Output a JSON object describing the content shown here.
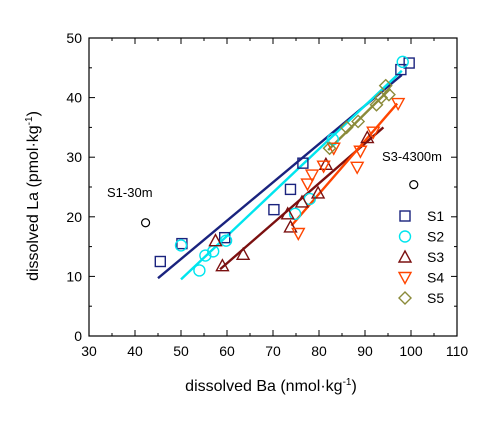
{
  "chart_data": {
    "type": "scatter",
    "xlabel": "dissolved Ba (nmol·kg",
    "xlabel_sup": "-1",
    "xlabel_end": ")",
    "ylabel": "dissolved La (pmol·kg",
    "ylabel_sup": "-1",
    "ylabel_end": ")",
    "xlim": [
      30,
      110
    ],
    "ylim": [
      0,
      50
    ],
    "x_ticks": [
      30,
      40,
      50,
      60,
      70,
      80,
      90,
      100,
      110
    ],
    "y_ticks": [
      0,
      10,
      20,
      30,
      40,
      50
    ],
    "grid": false,
    "legend_position": "right",
    "series": [
      {
        "name": "S1",
        "marker": "square",
        "color": "#1a237e",
        "points": [
          [
            45.5,
            12.5
          ],
          [
            50.2,
            15.5
          ],
          [
            59.5,
            16.5
          ],
          [
            70.2,
            21.2
          ],
          [
            73.8,
            24.6
          ],
          [
            76.5,
            29.0
          ],
          [
            97.8,
            44.7
          ],
          [
            99.6,
            45.8
          ]
        ],
        "fit": [
          [
            45,
            9.7
          ],
          [
            98,
            43.8
          ]
        ]
      },
      {
        "name": "S2",
        "marker": "circle",
        "color": "#00e5ee",
        "points": [
          [
            50.0,
            15.2
          ],
          [
            54.0,
            11.0
          ],
          [
            55.3,
            13.5
          ],
          [
            57.0,
            14.2
          ],
          [
            59.8,
            16.0
          ],
          [
            74.8,
            20.5
          ],
          [
            78.0,
            23.0
          ],
          [
            83.0,
            33.0
          ],
          [
            98.2,
            46.0
          ]
        ],
        "fit": [
          [
            50,
            9.5
          ],
          [
            98,
            44.5
          ]
        ]
      },
      {
        "name": "S3",
        "marker": "triangle",
        "color": "#7b1010",
        "points": [
          [
            57.5,
            16.0
          ],
          [
            59.0,
            11.8
          ],
          [
            63.5,
            13.7
          ],
          [
            73.2,
            20.5
          ],
          [
            73.8,
            18.3
          ],
          [
            76.3,
            22.5
          ],
          [
            79.8,
            24.0
          ],
          [
            81.5,
            28.8
          ],
          [
            90.5,
            33.3
          ]
        ],
        "fit": [
          [
            58.5,
            11.2
          ],
          [
            94,
            35.0
          ]
        ]
      },
      {
        "name": "S4",
        "marker": "triangle-down",
        "color": "#ff4500",
        "points": [
          [
            75.5,
            17.2
          ],
          [
            77.5,
            25.5
          ],
          [
            78.5,
            27.0
          ],
          [
            81.0,
            28.5
          ],
          [
            83.2,
            31.5
          ],
          [
            88.3,
            28.3
          ],
          [
            89.0,
            31.0
          ],
          [
            91.8,
            34.2
          ],
          [
            97.2,
            39.0
          ]
        ],
        "fit": [
          [
            74,
            18.5
          ],
          [
            97,
            39.0
          ]
        ]
      },
      {
        "name": "S5",
        "marker": "diamond",
        "color": "#8b8b3a",
        "points": [
          [
            82.3,
            31.5
          ],
          [
            86.0,
            35.0
          ],
          [
            88.5,
            36.0
          ],
          [
            92.5,
            38.8
          ],
          [
            93.5,
            40.0
          ],
          [
            94.5,
            42.0
          ],
          [
            95.2,
            40.5
          ]
        ],
        "fit": [
          [
            82,
            31.2
          ],
          [
            95.5,
            41.5
          ]
        ]
      }
    ],
    "extra_points": [
      {
        "label": "S1-30m",
        "x": 42.3,
        "y": 19.0
      },
      {
        "label": "S3-4300m",
        "x": 100.6,
        "y": 25.4
      }
    ]
  }
}
